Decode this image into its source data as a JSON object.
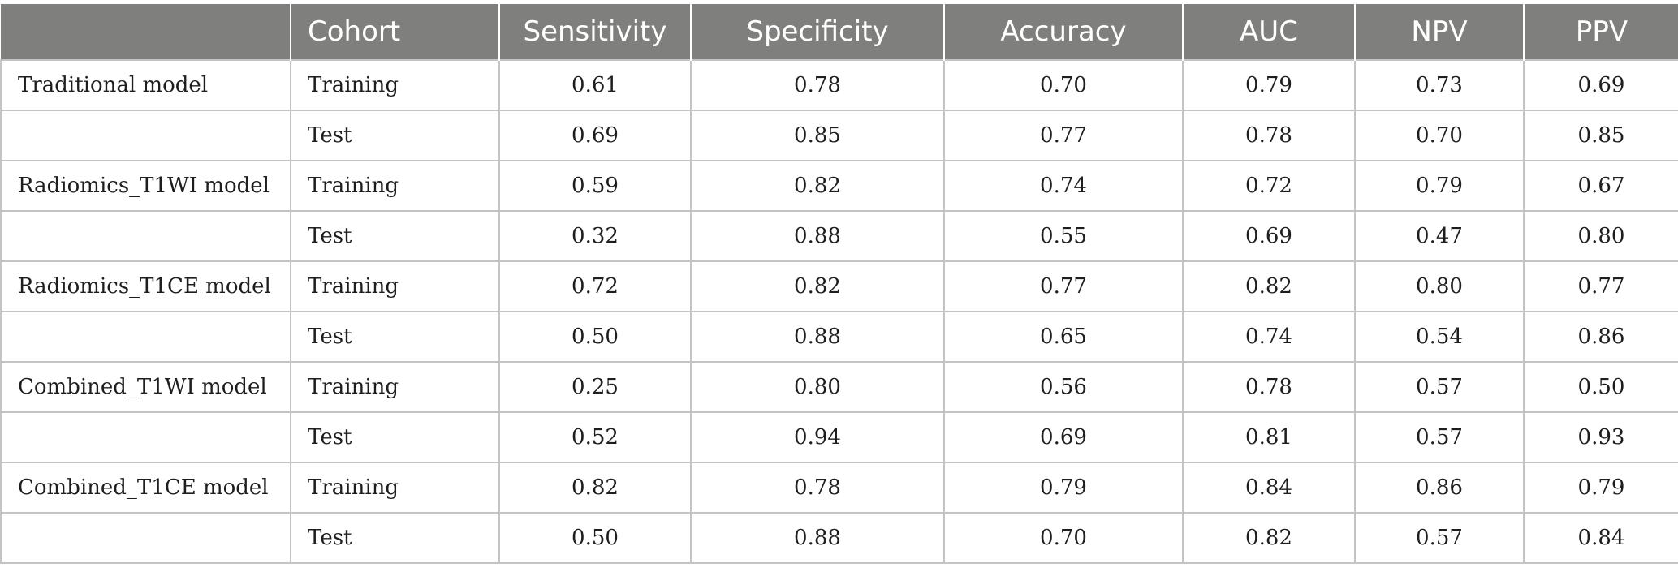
{
  "table": {
    "headers": [
      "",
      "Cohort",
      "Sensitivity",
      "Specificity",
      "Accuracy",
      "AUC",
      "NPV",
      "PPV"
    ],
    "rows": [
      [
        "Traditional model",
        "Training",
        "0.61",
        "0.78",
        "0.70",
        "0.79",
        "0.73",
        "0.69"
      ],
      [
        "",
        "Test",
        "0.69",
        "0.85",
        "0.77",
        "0.78",
        "0.70",
        "0.85"
      ],
      [
        "Radiomics_T1WI model",
        "Training",
        "0.59",
        "0.82",
        "0.74",
        "0.72",
        "0.79",
        "0.67"
      ],
      [
        "",
        "Test",
        "0.32",
        "0.88",
        "0.55",
        "0.69",
        "0.47",
        "0.80"
      ],
      [
        "Radiomics_T1CE model",
        "Training",
        "0.72",
        "0.82",
        "0.77",
        "0.82",
        "0.80",
        "0.77"
      ],
      [
        "",
        "Test",
        "0.50",
        "0.88",
        "0.65",
        "0.74",
        "0.54",
        "0.86"
      ],
      [
        "Combined_T1WI model",
        "Training",
        "0.25",
        "0.80",
        "0.56",
        "0.78",
        "0.57",
        "0.50"
      ],
      [
        "",
        "Test",
        "0.52",
        "0.94",
        "0.69",
        "0.81",
        "0.57",
        "0.93"
      ],
      [
        "Combined_T1CE model",
        "Training",
        "0.82",
        "0.78",
        "0.79",
        "0.84",
        "0.86",
        "0.79"
      ],
      [
        "",
        "Test",
        "0.50",
        "0.88",
        "0.70",
        "0.82",
        "0.57",
        "0.84"
      ]
    ]
  },
  "colors": {
    "header_bg": "#7f7f7e",
    "header_text": "#ffffff",
    "grid": "#c4c4c4",
    "body_text": "#1e1e1e"
  }
}
